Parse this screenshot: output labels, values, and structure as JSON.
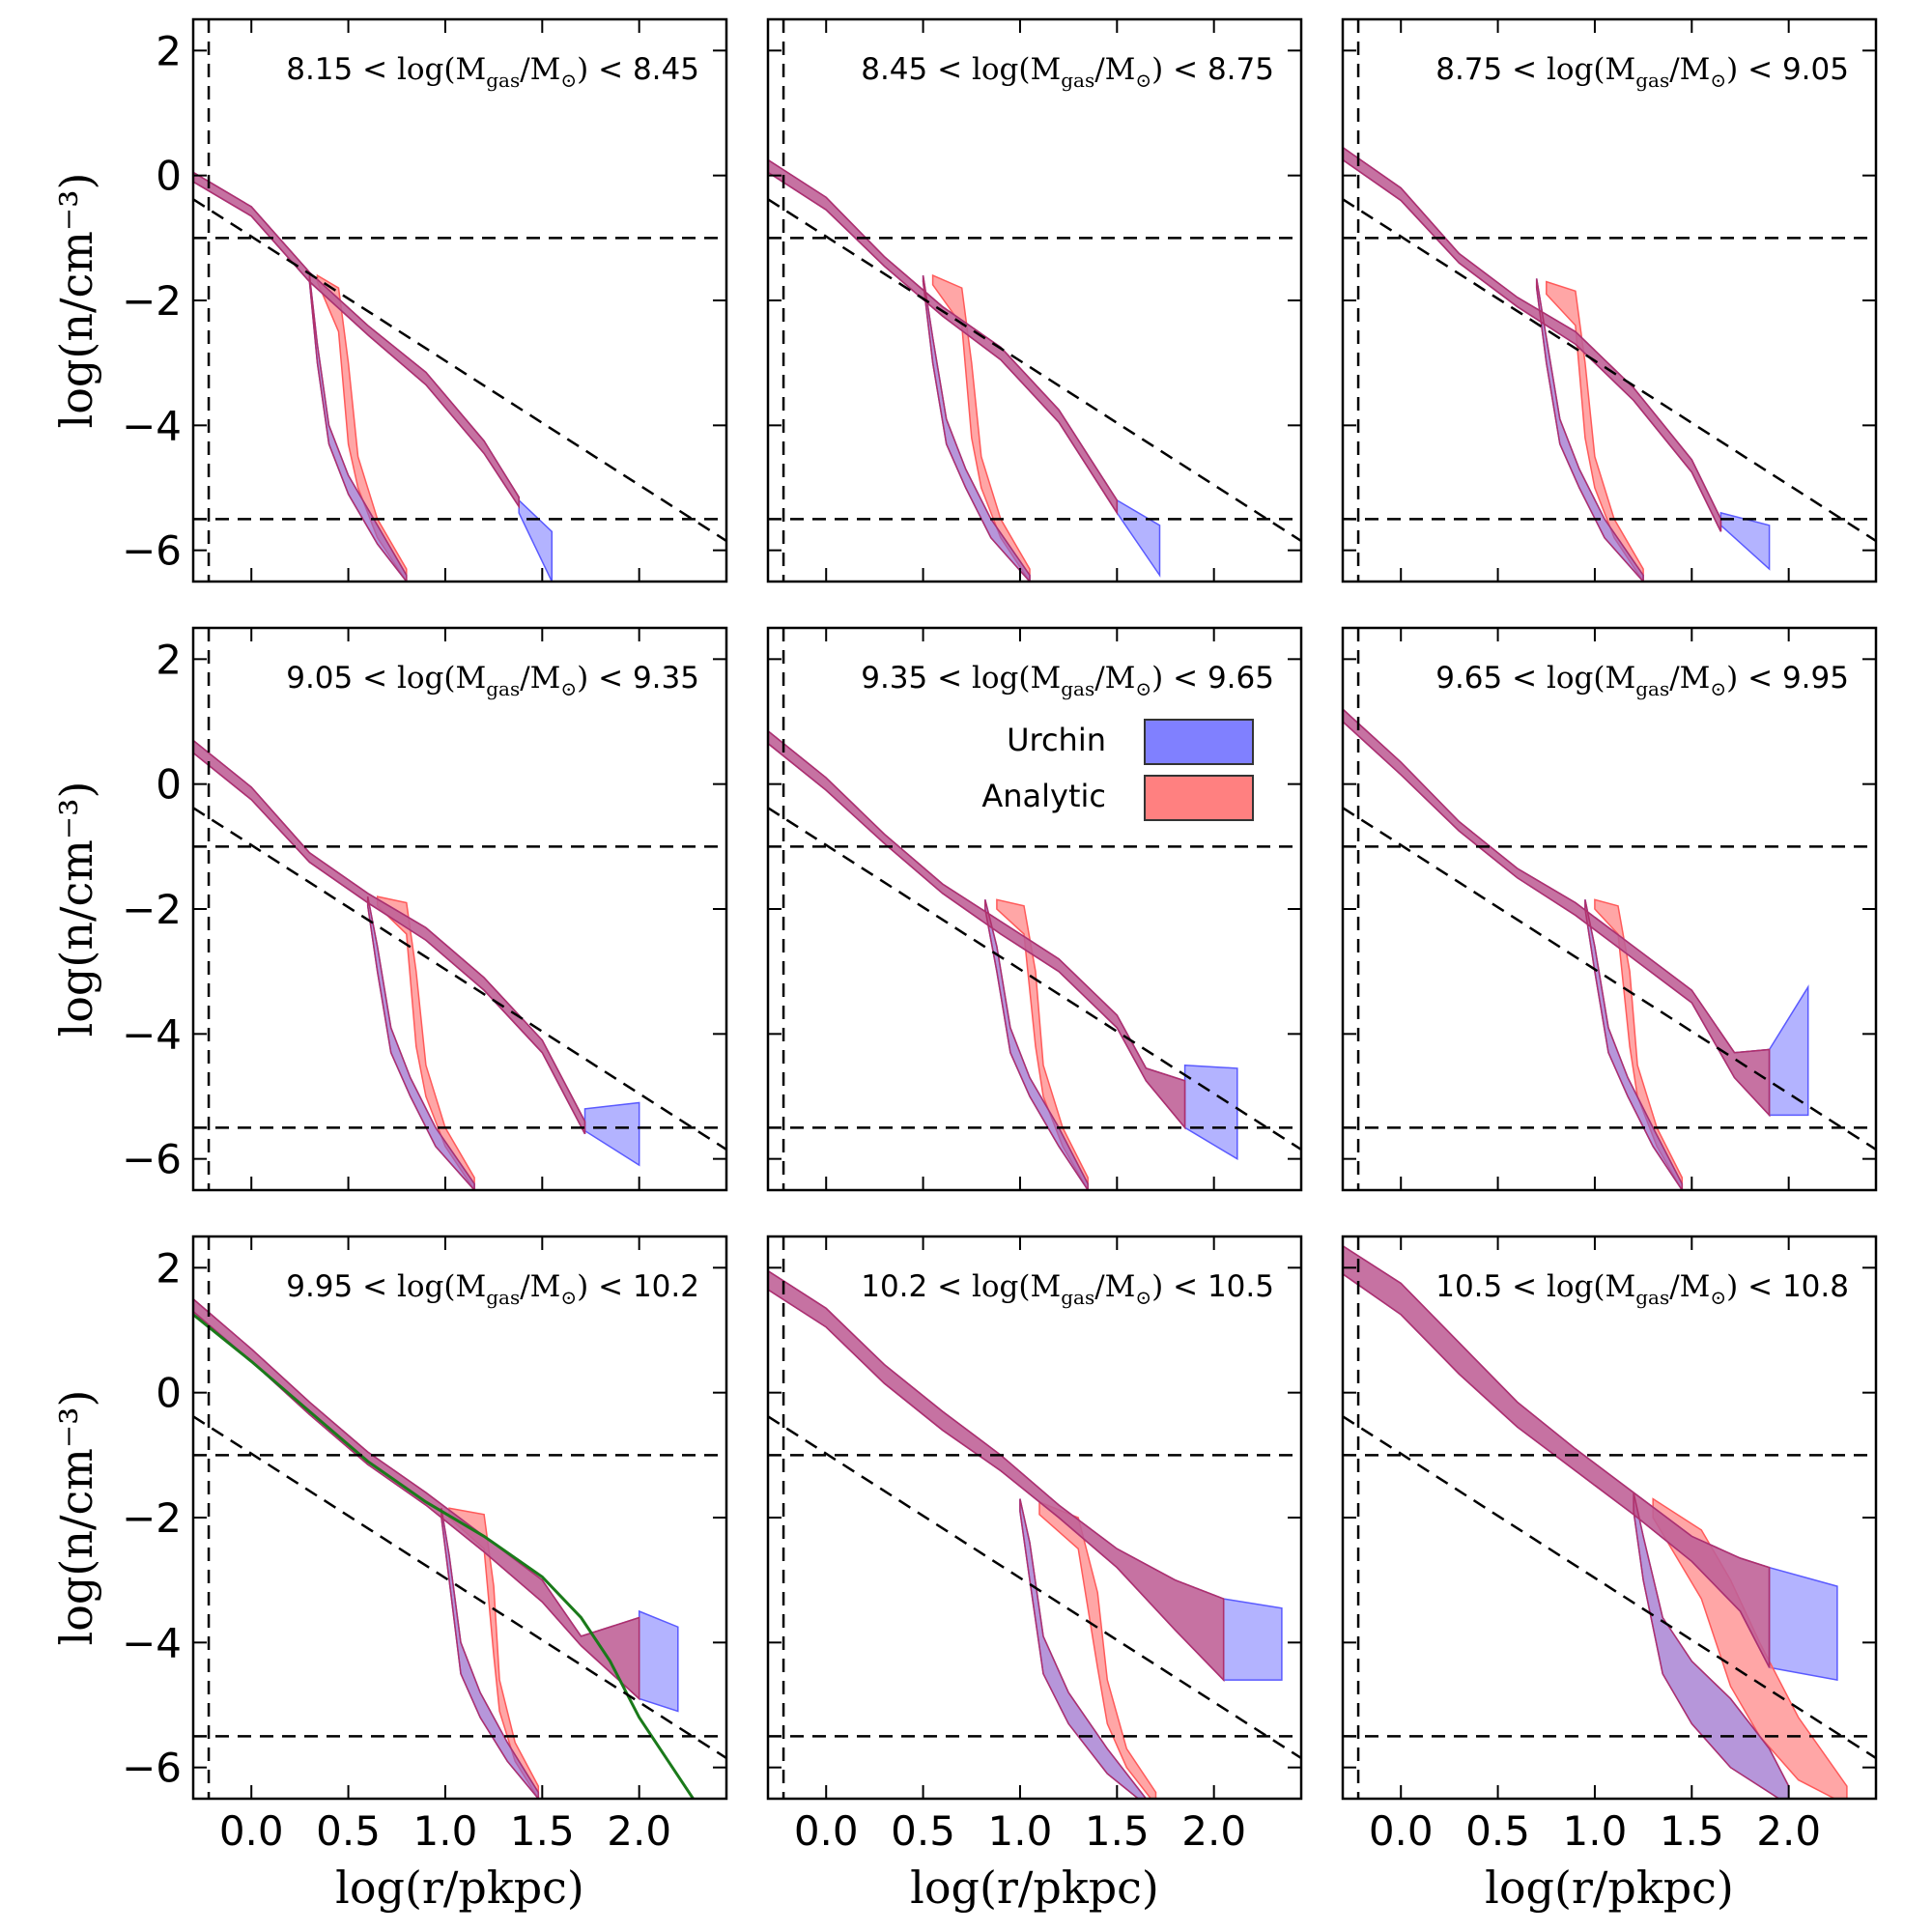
{
  "figure": {
    "colors": {
      "urchin": "#8080ff",
      "analytic": "#ff8080",
      "overlap": "#b0306a",
      "profile_line": "#1a7a1a",
      "guide": "#000000"
    },
    "y_tick_labels": [
      "2",
      "0",
      "−2",
      "−4",
      "−6"
    ],
    "x_tick_labels": [
      "0.0",
      "0.5",
      "1.0",
      "1.5",
      "2.0"
    ],
    "ylabel": "log(n/cm⁻³)",
    "xlabel": "log(r/pkpc)",
    "panel_labels": [
      {
        "lo": "8.15",
        "hi": "8.45"
      },
      {
        "lo": "8.45",
        "hi": "8.75"
      },
      {
        "lo": "8.75",
        "hi": "9.05"
      },
      {
        "lo": "9.05",
        "hi": "9.35"
      },
      {
        "lo": "9.35",
        "hi": "9.65"
      },
      {
        "lo": "9.65",
        "hi": "9.95"
      },
      {
        "lo": "9.95",
        "hi": "10.2"
      },
      {
        "lo": "10.2",
        "hi": "10.5"
      },
      {
        "lo": "10.5",
        "hi": "10.8"
      }
    ],
    "legend": [
      {
        "label": "Urchin",
        "color": "#8080ff"
      },
      {
        "label": "Analytic",
        "color": "#ff8080"
      }
    ]
  },
  "chart_data": {
    "type": "area",
    "layout": "3x3 grid of panels, shared axes",
    "xlabel": "log(r/pkpc)",
    "ylabel": "log(n/cm^-3)",
    "xlim": [
      -0.3,
      2.45
    ],
    "ylim": [
      -6.5,
      2.5
    ],
    "xticks": [
      0.0,
      0.5,
      1.0,
      1.5,
      2.0
    ],
    "yticks": [
      2,
      0,
      -2,
      -4,
      -6
    ],
    "reference_lines": {
      "vertical_x": -0.22,
      "horizontal_y": [
        -1.0,
        -5.5
      ],
      "diagonal": {
        "x": [
          -0.3,
          2.45
        ],
        "y": [
          -0.38,
          -5.85
        ]
      }
    },
    "legend_location": "middle-center panel, center-right",
    "series_names": [
      "Urchin",
      "Analytic"
    ],
    "panels": [
      {
        "label": "8.15 < log(Mgas/Msun) < 8.45",
        "outer": {
          "x": [
            -0.3,
            0.0,
            0.3,
            0.6,
            0.9,
            1.2,
            1.38
          ],
          "lo": [
            -0.1,
            -0.65,
            -1.7,
            -2.55,
            -3.35,
            -4.45,
            -5.3
          ],
          "hi": [
            0.05,
            -0.5,
            -1.55,
            -2.4,
            -3.15,
            -4.25,
            -5.15
          ]
        },
        "outer_urchin_tail": {
          "x": [
            1.38,
            1.55
          ],
          "lo": [
            -5.4,
            -6.5
          ],
          "hi": [
            -5.2,
            -5.7
          ]
        },
        "inner_urchin": {
          "x": [
            0.3,
            0.34,
            0.4,
            0.5,
            0.65,
            0.8
          ],
          "lo": [
            -1.7,
            -3.0,
            -4.3,
            -5.1,
            -5.9,
            -6.5
          ],
          "hi": [
            -1.6,
            -2.7,
            -4.0,
            -4.8,
            -5.6,
            -6.4
          ]
        },
        "inner_analytic": {
          "x": [
            0.34,
            0.45,
            0.5,
            0.55,
            0.65,
            0.8
          ],
          "lo": [
            -1.7,
            -2.5,
            -4.3,
            -5.0,
            -5.8,
            -6.5
          ],
          "hi": [
            -1.6,
            -1.8,
            -3.0,
            -4.5,
            -5.5,
            -6.3
          ]
        }
      },
      {
        "label": "8.45 < log(Mgas/Msun) < 8.75",
        "outer": {
          "x": [
            -0.3,
            0.0,
            0.3,
            0.6,
            0.9,
            1.2,
            1.5
          ],
          "lo": [
            0.05,
            -0.55,
            -1.45,
            -2.25,
            -2.95,
            -3.95,
            -5.4
          ],
          "hi": [
            0.25,
            -0.35,
            -1.3,
            -2.1,
            -2.75,
            -3.75,
            -5.2
          ]
        },
        "outer_urchin_tail": {
          "x": [
            1.5,
            1.72
          ],
          "lo": [
            -5.4,
            -6.4
          ],
          "hi": [
            -5.2,
            -5.6
          ]
        },
        "inner_urchin": {
          "x": [
            0.5,
            0.55,
            0.62,
            0.72,
            0.85,
            1.05
          ],
          "lo": [
            -1.7,
            -3.0,
            -4.3,
            -5.0,
            -5.8,
            -6.5
          ],
          "hi": [
            -1.6,
            -2.6,
            -3.9,
            -4.7,
            -5.5,
            -6.4
          ]
        },
        "inner_analytic": {
          "x": [
            0.55,
            0.7,
            0.75,
            0.8,
            0.9,
            1.05
          ],
          "lo": [
            -1.75,
            -2.4,
            -4.2,
            -5.0,
            -5.8,
            -6.5
          ],
          "hi": [
            -1.6,
            -1.8,
            -3.0,
            -4.5,
            -5.5,
            -6.3
          ]
        }
      },
      {
        "label": "8.75 < log(Mgas/Msun) < 9.05",
        "outer": {
          "x": [
            -0.3,
            0.0,
            0.3,
            0.6,
            0.9,
            1.2,
            1.5,
            1.65
          ],
          "lo": [
            0.25,
            -0.4,
            -1.4,
            -2.1,
            -2.7,
            -3.6,
            -4.75,
            -5.7
          ],
          "hi": [
            0.45,
            -0.2,
            -1.25,
            -1.95,
            -2.5,
            -3.4,
            -4.55,
            -5.5
          ]
        },
        "outer_urchin_tail": {
          "x": [
            1.65,
            1.9
          ],
          "lo": [
            -5.6,
            -6.3
          ],
          "hi": [
            -5.4,
            -5.6
          ]
        },
        "inner_urchin": {
          "x": [
            0.7,
            0.75,
            0.82,
            0.92,
            1.05,
            1.25
          ],
          "lo": [
            -1.8,
            -3.0,
            -4.3,
            -5.0,
            -5.8,
            -6.5
          ],
          "hi": [
            -1.65,
            -2.6,
            -3.9,
            -4.7,
            -5.5,
            -6.4
          ]
        },
        "inner_analytic": {
          "x": [
            0.75,
            0.9,
            0.95,
            1.0,
            1.1,
            1.25
          ],
          "lo": [
            -1.9,
            -2.4,
            -4.2,
            -5.0,
            -5.8,
            -6.5
          ],
          "hi": [
            -1.7,
            -1.85,
            -3.0,
            -4.5,
            -5.5,
            -6.3
          ]
        }
      },
      {
        "label": "9.05 < log(Mgas/Msun) < 9.35",
        "outer": {
          "x": [
            -0.3,
            0.0,
            0.3,
            0.6,
            0.9,
            1.2,
            1.5,
            1.72
          ],
          "lo": [
            0.5,
            -0.25,
            -1.25,
            -1.9,
            -2.5,
            -3.3,
            -4.3,
            -5.6
          ],
          "hi": [
            0.7,
            -0.05,
            -1.1,
            -1.75,
            -2.3,
            -3.1,
            -4.1,
            -5.4
          ]
        },
        "outer_urchin_tail": {
          "x": [
            1.72,
            2.0
          ],
          "lo": [
            -5.55,
            -6.1
          ],
          "hi": [
            -5.2,
            -5.1
          ]
        },
        "inner_urchin": {
          "x": [
            0.6,
            0.65,
            0.72,
            0.82,
            0.95,
            1.15
          ],
          "lo": [
            -1.95,
            -3.0,
            -4.3,
            -5.0,
            -5.8,
            -6.5
          ],
          "hi": [
            -1.8,
            -2.6,
            -3.9,
            -4.7,
            -5.5,
            -6.4
          ]
        },
        "inner_analytic": {
          "x": [
            0.65,
            0.8,
            0.85,
            0.9,
            1.0,
            1.15
          ],
          "lo": [
            -1.95,
            -2.4,
            -4.2,
            -5.0,
            -5.8,
            -6.5
          ],
          "hi": [
            -1.8,
            -1.9,
            -3.0,
            -4.5,
            -5.5,
            -6.3
          ]
        }
      },
      {
        "label": "9.35 < log(Mgas/Msun) < 9.65",
        "outer": {
          "x": [
            -0.3,
            0.0,
            0.3,
            0.6,
            0.9,
            1.2,
            1.5,
            1.65,
            1.85
          ],
          "lo": [
            0.65,
            -0.1,
            -0.95,
            -1.75,
            -2.4,
            -3.0,
            -3.9,
            -4.75,
            -5.5
          ],
          "hi": [
            0.85,
            0.1,
            -0.8,
            -1.6,
            -2.2,
            -2.8,
            -3.7,
            -4.55,
            -4.75
          ]
        },
        "outer_urchin_tail": {
          "x": [
            1.85,
            2.12
          ],
          "lo": [
            -5.5,
            -6.0
          ],
          "hi": [
            -4.5,
            -4.55
          ]
        },
        "inner_urchin": {
          "x": [
            0.82,
            0.88,
            0.95,
            1.05,
            1.2,
            1.35
          ],
          "lo": [
            -2.0,
            -3.0,
            -4.3,
            -5.0,
            -5.8,
            -6.5
          ],
          "hi": [
            -1.85,
            -2.6,
            -3.9,
            -4.7,
            -5.5,
            -6.4
          ]
        },
        "inner_analytic": {
          "x": [
            0.88,
            1.02,
            1.08,
            1.12,
            1.22,
            1.35
          ],
          "lo": [
            -2.0,
            -2.4,
            -4.2,
            -5.0,
            -5.8,
            -6.5
          ],
          "hi": [
            -1.85,
            -1.95,
            -3.0,
            -4.5,
            -5.5,
            -6.3
          ]
        }
      },
      {
        "label": "9.65 < log(Mgas/Msun) < 9.95",
        "outer": {
          "x": [
            -0.3,
            0.0,
            0.3,
            0.6,
            0.9,
            1.2,
            1.5,
            1.72,
            1.9
          ],
          "lo": [
            1.0,
            0.15,
            -0.75,
            -1.5,
            -2.1,
            -2.8,
            -3.5,
            -4.7,
            -5.3
          ],
          "hi": [
            1.2,
            0.35,
            -0.6,
            -1.35,
            -1.9,
            -2.6,
            -3.3,
            -4.3,
            -4.25
          ]
        },
        "outer_urchin_tail": {
          "x": [
            1.9,
            2.1
          ],
          "lo": [
            -5.3,
            -5.3
          ],
          "hi": [
            -4.25,
            -3.25
          ]
        },
        "inner_urchin": {
          "x": [
            0.95,
            1.0,
            1.07,
            1.17,
            1.3,
            1.45
          ],
          "lo": [
            -2.0,
            -3.0,
            -4.3,
            -5.0,
            -5.8,
            -6.5
          ],
          "hi": [
            -1.85,
            -2.6,
            -3.9,
            -4.7,
            -5.5,
            -6.4
          ]
        },
        "inner_analytic": {
          "x": [
            1.0,
            1.12,
            1.18,
            1.22,
            1.32,
            1.45
          ],
          "lo": [
            -2.0,
            -2.4,
            -4.2,
            -5.0,
            -5.8,
            -6.5
          ],
          "hi": [
            -1.85,
            -1.95,
            -3.0,
            -4.5,
            -5.5,
            -6.3
          ]
        }
      },
      {
        "label": "9.95 < log(Mgas/Msun) < 10.2",
        "outer": {
          "x": [
            -0.3,
            0.0,
            0.3,
            0.6,
            0.9,
            1.2,
            1.5,
            1.7,
            2.0
          ],
          "lo": [
            1.3,
            0.5,
            -0.35,
            -1.15,
            -1.8,
            -2.55,
            -3.35,
            -4.05,
            -4.9
          ],
          "hi": [
            1.5,
            0.7,
            -0.15,
            -0.95,
            -1.6,
            -2.3,
            -3.0,
            -3.9,
            -3.6
          ]
        },
        "outer_urchin_tail": {
          "x": [
            2.0,
            2.2
          ],
          "lo": [
            -4.9,
            -5.1
          ],
          "hi": [
            -3.5,
            -3.75
          ]
        },
        "inner_urchin": {
          "x": [
            0.98,
            1.02,
            1.08,
            1.18,
            1.32,
            1.48
          ],
          "lo": [
            -2.0,
            -3.0,
            -4.5,
            -5.2,
            -5.9,
            -6.5
          ],
          "hi": [
            -1.85,
            -2.6,
            -4.0,
            -4.8,
            -5.6,
            -6.4
          ]
        },
        "inner_analytic": {
          "x": [
            1.02,
            1.2,
            1.25,
            1.28,
            1.36,
            1.48
          ],
          "lo": [
            -2.0,
            -2.5,
            -4.2,
            -5.1,
            -5.9,
            -6.5
          ],
          "hi": [
            -1.85,
            -1.95,
            -3.1,
            -4.6,
            -5.6,
            -6.3
          ]
        },
        "profile_line": {
          "x": [
            -0.3,
            0.0,
            0.3,
            0.6,
            0.9,
            1.2,
            1.5,
            1.7,
            1.85,
            2.0,
            2.15,
            2.3
          ],
          "y": [
            1.25,
            0.5,
            -0.3,
            -1.1,
            -1.75,
            -2.3,
            -2.95,
            -3.6,
            -4.3,
            -5.2,
            -5.9,
            -6.6
          ]
        }
      },
      {
        "label": "10.2 < log(Mgas/Msun) < 10.5",
        "outer": {
          "x": [
            -0.3,
            0.0,
            0.3,
            0.6,
            0.9,
            1.2,
            1.5,
            1.8,
            2.05
          ],
          "lo": [
            1.65,
            1.05,
            0.15,
            -0.6,
            -1.25,
            -2.0,
            -2.8,
            -3.8,
            -4.6
          ],
          "hi": [
            1.95,
            1.35,
            0.45,
            -0.3,
            -1.0,
            -1.8,
            -2.5,
            -3.0,
            -3.3
          ]
        },
        "outer_urchin_tail": {
          "x": [
            2.05,
            2.35
          ],
          "lo": [
            -4.6,
            -4.6
          ],
          "hi": [
            -3.3,
            -3.45
          ]
        },
        "inner_urchin": {
          "x": [
            1.0,
            1.05,
            1.12,
            1.25,
            1.45,
            1.65
          ],
          "lo": [
            -1.9,
            -3.0,
            -4.5,
            -5.3,
            -6.1,
            -6.6
          ],
          "hi": [
            -1.7,
            -2.4,
            -3.9,
            -4.8,
            -5.7,
            -6.5
          ]
        },
        "inner_analytic": {
          "x": [
            1.1,
            1.3,
            1.4,
            1.45,
            1.55,
            1.7
          ],
          "lo": [
            -1.95,
            -2.5,
            -4.4,
            -5.3,
            -6.0,
            -6.6
          ],
          "hi": [
            -1.75,
            -2.0,
            -3.2,
            -4.6,
            -5.7,
            -6.4
          ]
        }
      },
      {
        "label": "10.5 < log(Mgas/Msun) < 10.8",
        "outer": {
          "x": [
            -0.3,
            0.0,
            0.3,
            0.6,
            0.9,
            1.2,
            1.5,
            1.75,
            1.9
          ],
          "lo": [
            1.9,
            1.25,
            0.3,
            -0.55,
            -1.25,
            -1.95,
            -2.7,
            -3.5,
            -4.4
          ],
          "hi": [
            2.35,
            1.75,
            0.8,
            -0.15,
            -0.9,
            -1.6,
            -2.3,
            -2.65,
            -2.8
          ]
        },
        "outer_urchin_tail": {
          "x": [
            1.9,
            2.25
          ],
          "lo": [
            -4.4,
            -4.6
          ],
          "hi": [
            -2.8,
            -3.1
          ]
        },
        "inner_urchin": {
          "x": [
            1.2,
            1.25,
            1.35,
            1.5,
            1.7,
            1.9,
            2.0
          ],
          "lo": [
            -1.9,
            -3.0,
            -4.5,
            -5.3,
            -6.0,
            -6.4,
            -6.6
          ],
          "hi": [
            -1.6,
            -2.3,
            -3.6,
            -4.3,
            -4.9,
            -5.7,
            -6.3
          ]
        },
        "inner_analytic": {
          "x": [
            1.3,
            1.55,
            1.7,
            1.85,
            2.05,
            2.3
          ],
          "lo": [
            -2.0,
            -3.3,
            -4.7,
            -5.5,
            -6.2,
            -6.6
          ],
          "hi": [
            -1.7,
            -2.2,
            -3.0,
            -4.0,
            -5.2,
            -6.3
          ]
        }
      }
    ]
  }
}
